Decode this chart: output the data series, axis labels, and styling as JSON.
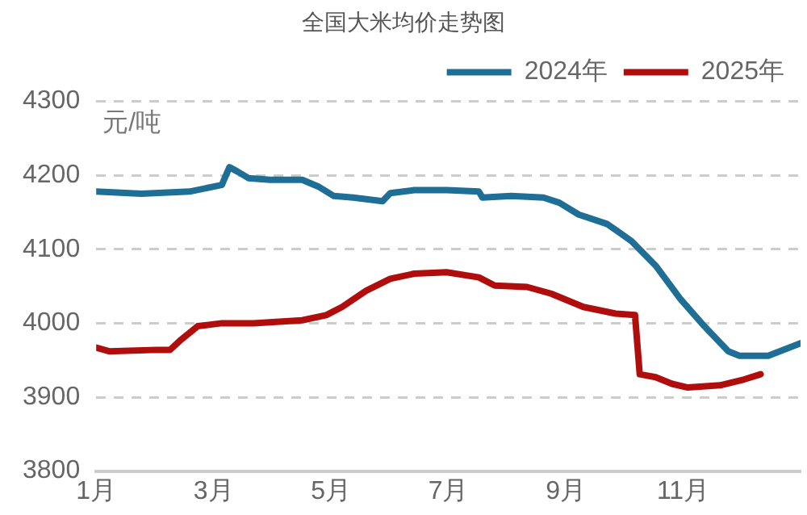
{
  "chart_data": {
    "type": "line",
    "title": "全国大米均价走势图",
    "ylabel": "元/吨",
    "xlim": [
      1,
      13
    ],
    "xticks": [
      {
        "value": 1,
        "label": "1月"
      },
      {
        "value": 3,
        "label": "3月"
      },
      {
        "value": 5,
        "label": "5月"
      },
      {
        "value": 7,
        "label": "7月"
      },
      {
        "value": 9,
        "label": "9月"
      },
      {
        "value": 11,
        "label": "11月"
      }
    ],
    "ylim": [
      3800,
      4300
    ],
    "yticks": [
      3800,
      3900,
      4000,
      4100,
      4200,
      4300
    ],
    "grid": "y",
    "legend": "top right",
    "marker": "none",
    "line_style": "solid",
    "series": [
      {
        "name": "2024年",
        "color": "#1f6e96",
        "x": [
          1.0,
          1.77,
          2.59,
          3.14,
          3.27,
          3.41,
          3.6,
          3.96,
          4.51,
          4.78,
          5.05,
          5.38,
          5.88,
          6.01,
          6.42,
          6.97,
          7.52,
          7.58,
          8.07,
          8.62,
          8.89,
          9.22,
          9.71,
          10.12,
          10.53,
          10.95,
          11.36,
          11.77,
          11.96,
          12.45,
          13.0
        ],
        "values": [
          4178,
          4175,
          4178,
          4187,
          4211,
          4205,
          4196,
          4194,
          4194,
          4185,
          4172,
          4170,
          4165,
          4176,
          4180,
          4180,
          4178,
          4170,
          4172,
          4170,
          4163,
          4147,
          4134,
          4111,
          4078,
          4033,
          3996,
          3962,
          3956,
          3956,
          3973
        ]
      },
      {
        "name": "2025年",
        "color": "#b00d0d",
        "x": [
          1.0,
          1.22,
          2.04,
          2.26,
          2.45,
          2.73,
          3.14,
          3.68,
          4.51,
          4.92,
          5.19,
          5.6,
          6.01,
          6.42,
          6.97,
          7.52,
          7.79,
          8.34,
          8.75,
          9.3,
          9.85,
          10.18,
          10.26,
          10.53,
          10.81,
          11.08,
          11.63,
          12.04,
          12.32
        ],
        "values": [
          3967,
          3962,
          3964,
          3964,
          3978,
          3996,
          4000,
          4000,
          4004,
          4011,
          4022,
          4044,
          4060,
          4067,
          4069,
          4062,
          4051,
          4049,
          4040,
          4022,
          4013,
          4011,
          3931,
          3927,
          3918,
          3913,
          3916,
          3924,
          3931
        ]
      }
    ]
  }
}
